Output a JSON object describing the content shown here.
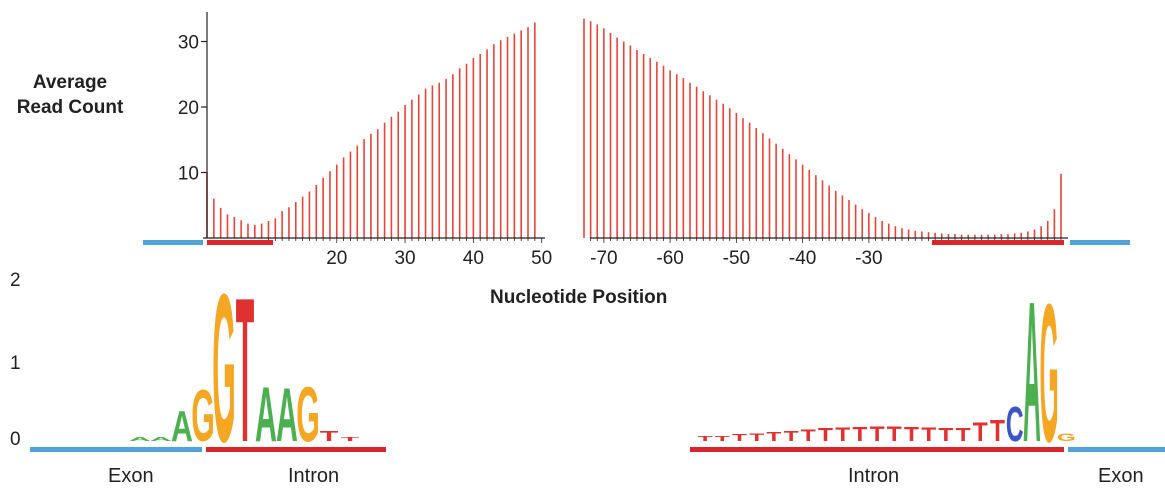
{
  "chart_data": {
    "type": "bar",
    "ylabel_line1": "Average",
    "ylabel_line2": "Read Count",
    "xlabel": "Nucleotide Position",
    "y_ticks": [
      "10",
      "20",
      "30"
    ],
    "ylim": [
      0,
      35
    ],
    "colors": {
      "bars": "#e8443a",
      "exon": "#4fa3d9",
      "intron": "#d9262c",
      "axis": "#222222"
    },
    "donor_panel": {
      "x_ticks": [
        "20",
        "30",
        "40",
        "50"
      ],
      "positions": [
        1,
        2,
        3,
        4,
        5,
        6,
        7,
        8,
        9,
        10,
        11,
        12,
        13,
        14,
        15,
        16,
        17,
        18,
        19,
        20,
        21,
        22,
        23,
        24,
        25,
        26,
        27,
        28,
        29,
        30,
        31,
        32,
        33,
        34,
        35,
        36,
        37,
        38,
        39,
        40,
        41,
        42,
        43,
        44,
        45,
        46,
        47,
        48,
        49
      ],
      "values": [
        10.0,
        6.0,
        4.6,
        3.6,
        3.2,
        2.7,
        2.2,
        2.0,
        2.2,
        2.6,
        3.0,
        4.1,
        4.7,
        5.5,
        6.3,
        7.1,
        8.1,
        9.2,
        10.2,
        11.2,
        12.3,
        13.2,
        14.1,
        15.1,
        15.9,
        16.6,
        17.6,
        18.5,
        19.3,
        20.3,
        21.1,
        21.9,
        22.8,
        23.3,
        23.7,
        24.3,
        25.0,
        25.9,
        26.6,
        27.5,
        28.1,
        28.8,
        29.6,
        30.2,
        30.7,
        31.2,
        31.7,
        32.2,
        32.9
      ]
    },
    "acceptor_panel": {
      "x_ticks": [
        "-70",
        "-60",
        "-50",
        "-40",
        "-30"
      ],
      "positions": [
        -73,
        -72,
        -71,
        -70,
        -69,
        -68,
        -67,
        -66,
        -65,
        -64,
        -63,
        -62,
        -61,
        -60,
        -59,
        -58,
        -57,
        -56,
        -55,
        -54,
        -53,
        -52,
        -51,
        -50,
        -49,
        -48,
        -47,
        -46,
        -45,
        -44,
        -43,
        -42,
        -41,
        -40,
        -39,
        -38,
        -37,
        -36,
        -35,
        -34,
        -33,
        -32,
        -31,
        -30,
        -29,
        -28,
        -27,
        -26,
        -25,
        -24,
        -23,
        -22,
        -21,
        -20,
        -19,
        -18,
        -17,
        -16,
        -15,
        -14,
        -13,
        -12,
        -11,
        -10,
        -9,
        -8,
        -7,
        -6,
        -5,
        -4,
        -3,
        -2,
        -1
      ],
      "values": [
        33.5,
        33.1,
        32.6,
        32.0,
        31.3,
        30.6,
        30.0,
        29.4,
        28.7,
        28.1,
        27.5,
        26.9,
        26.3,
        25.6,
        25.0,
        24.4,
        23.7,
        23.1,
        22.4,
        21.8,
        21.1,
        20.5,
        19.8,
        19.1,
        18.3,
        17.6,
        16.8,
        16.0,
        15.2,
        14.4,
        13.6,
        12.8,
        12.0,
        11.2,
        10.4,
        9.6,
        8.8,
        8.0,
        7.2,
        6.5,
        5.8,
        5.1,
        4.4,
        3.8,
        3.2,
        2.6,
        2.2,
        1.8,
        1.5,
        1.3,
        1.1,
        1.0,
        0.9,
        0.8,
        0.7,
        0.6,
        0.6,
        0.5,
        0.5,
        0.5,
        0.5,
        0.5,
        0.5,
        0.6,
        0.6,
        0.7,
        0.8,
        1.0,
        1.3,
        1.8,
        2.6,
        4.4,
        9.8
      ]
    },
    "logo": {
      "y_ticks": [
        "0",
        "1",
        "2"
      ],
      "ylim": [
        0,
        2
      ],
      "region_labels": {
        "exon_left": "Exon",
        "intron_left": "Intron",
        "intron_right": "Intron",
        "exon_right": "Exon"
      },
      "nucleotide_colors": {
        "A": "#4caf50",
        "C": "#3a55c8",
        "G": "#f5a623",
        "T": "#e03030"
      },
      "donor_columns": [
        {
          "letter": "A",
          "height": 0.05
        },
        {
          "letter": "A",
          "height": 0.05
        },
        {
          "letter": "A",
          "height": 0.4
        },
        {
          "letter": "G",
          "height": 0.68
        },
        {
          "letter": "G",
          "height": 1.95
        },
        {
          "letter": "T",
          "height": 1.9
        },
        {
          "letter": "A",
          "height": 0.72
        },
        {
          "letter": "A",
          "height": 0.7
        },
        {
          "letter": "G",
          "height": 0.72
        },
        {
          "letter": "T",
          "height": 0.14
        },
        {
          "letter": "T",
          "height": 0.05
        }
      ],
      "acceptor_columns": [
        {
          "letter": "T",
          "height": 0.07
        },
        {
          "letter": "T",
          "height": 0.07
        },
        {
          "letter": "T",
          "height": 0.09
        },
        {
          "letter": "T",
          "height": 0.1
        },
        {
          "letter": "T",
          "height": 0.12
        },
        {
          "letter": "T",
          "height": 0.14
        },
        {
          "letter": "T",
          "height": 0.15
        },
        {
          "letter": "T",
          "height": 0.17
        },
        {
          "letter": "T",
          "height": 0.18
        },
        {
          "letter": "T",
          "height": 0.19
        },
        {
          "letter": "T",
          "height": 0.2
        },
        {
          "letter": "T",
          "height": 0.2
        },
        {
          "letter": "T",
          "height": 0.19
        },
        {
          "letter": "T",
          "height": 0.18
        },
        {
          "letter": "T",
          "height": 0.17
        },
        {
          "letter": "T",
          "height": 0.17
        },
        {
          "letter": "T",
          "height": 0.25
        },
        {
          "letter": "T",
          "height": 0.28
        },
        {
          "letter": "C",
          "height": 0.45
        },
        {
          "letter": "A",
          "height": 1.85
        },
        {
          "letter": "G",
          "height": 1.82
        },
        {
          "letter": "G",
          "height": 0.1
        }
      ]
    }
  }
}
